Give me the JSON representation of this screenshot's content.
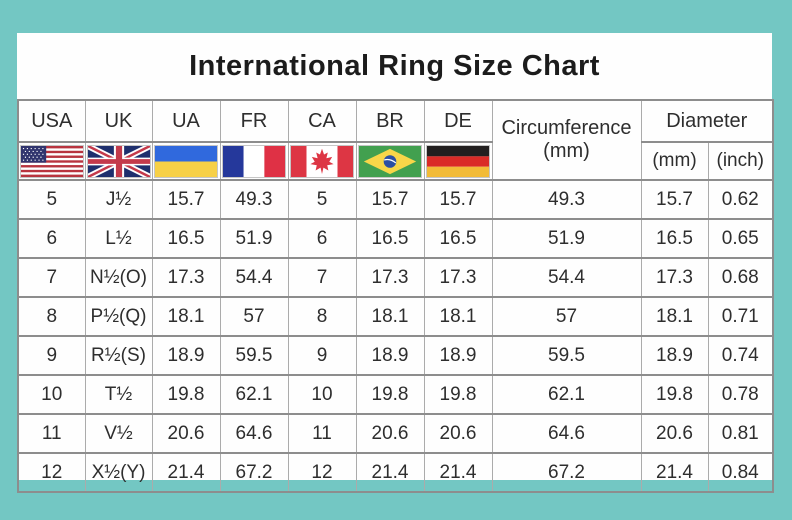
{
  "colors": {
    "page_background": "#73c7c3",
    "card_background": "#fefefe",
    "grid_line": "#8d8d8d",
    "title_text": "#1c1c1c",
    "cell_text": "#2e2e2e"
  },
  "title": "International Ring Size Chart",
  "header": {
    "circumference_line1": "Circumference",
    "circumference_line2": "(mm)",
    "diameter": "Diameter",
    "diameter_mm": "(mm)",
    "diameter_inch": "(inch)"
  },
  "flag_icons": [
    "usa-flag-icon",
    "uk-flag-icon",
    "ukraine-flag-icon",
    "france-flag-icon",
    "canada-flag-icon",
    "brazil-flag-icon",
    "germany-flag-icon"
  ],
  "chart_data": {
    "type": "table",
    "title": "International Ring Size Chart",
    "columns": [
      "USA",
      "UK",
      "UA",
      "FR",
      "CA",
      "BR",
      "DE",
      "Circumference (mm)",
      "Diameter (mm)",
      "Diameter (inch)"
    ],
    "rows": [
      [
        "5",
        "J½",
        "15.7",
        "49.3",
        "5",
        "15.7",
        "15.7",
        "49.3",
        "15.7",
        "0.62"
      ],
      [
        "6",
        "L½",
        "16.5",
        "51.9",
        "6",
        "16.5",
        "16.5",
        "51.9",
        "16.5",
        "0.65"
      ],
      [
        "7",
        "N½(O)",
        "17.3",
        "54.4",
        "7",
        "17.3",
        "17.3",
        "54.4",
        "17.3",
        "0.68"
      ],
      [
        "8",
        "P½(Q)",
        "18.1",
        "57",
        "8",
        "18.1",
        "18.1",
        "57",
        "18.1",
        "0.71"
      ],
      [
        "9",
        "R½(S)",
        "18.9",
        "59.5",
        "9",
        "18.9",
        "18.9",
        "59.5",
        "18.9",
        "0.74"
      ],
      [
        "10",
        "T½",
        "19.8",
        "62.1",
        "10",
        "19.8",
        "19.8",
        "62.1",
        "19.8",
        "0.78"
      ],
      [
        "11",
        "V½",
        "20.6",
        "64.6",
        "11",
        "20.6",
        "20.6",
        "64.6",
        "20.6",
        "0.81"
      ],
      [
        "12",
        "X½(Y)",
        "21.4",
        "67.2",
        "12",
        "21.4",
        "21.4",
        "67.2",
        "21.4",
        "0.84"
      ]
    ]
  }
}
